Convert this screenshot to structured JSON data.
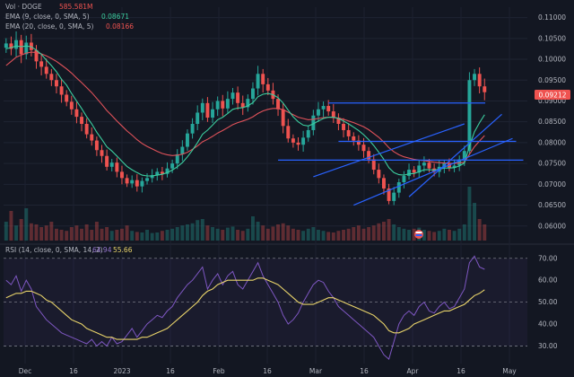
{
  "legend": {
    "vol_label": "Vol · DOGE",
    "vol_value": "585.581M",
    "ema9_label": "EMA (9, close, 0, SMA, 5)",
    "ema9_value": "0.08671",
    "ema20_label": "EMA (20, close, 0, SMA, 5)",
    "ema20_value": "0.08166",
    "rsi_label": "RSI (14, close, 0, SMA, 14, 2)",
    "rsi_value": "64.94",
    "rsi_ma_value": "55.66"
  },
  "price_badge": "0.09212",
  "colors": {
    "background": "#131722",
    "up": "#26a69a",
    "down": "#ef5350",
    "ema9": "#3ccfa0",
    "ema20": "#e0525a",
    "channel": "#2962ff",
    "rsi": "#7e57c2",
    "rsi_ma": "#e8d36a",
    "text": "#b2b5be"
  },
  "chart_data": {
    "type": "candlestick",
    "symbol": "DOGE",
    "price_axis": {
      "ylim": [
        0.0565,
        0.1125
      ],
      "ticks": [
        "0.11000",
        "0.10500",
        "0.10000",
        "0.09500",
        "0.09000",
        "0.08500",
        "0.08000",
        "0.07500",
        "0.07000",
        "0.06500",
        "0.06000"
      ]
    },
    "x_axis": {
      "ticks": [
        "Dec",
        "16",
        "2023",
        "16",
        "Feb",
        "16",
        "Mar",
        "16",
        "Apr",
        "16",
        "May"
      ]
    },
    "last_price": 0.09212,
    "close": [
      0.1038,
      0.1025,
      0.1046,
      0.1012,
      0.104,
      0.1022,
      0.0995,
      0.0982,
      0.0965,
      0.095,
      0.0935,
      0.0915,
      0.0898,
      0.088,
      0.0862,
      0.0845,
      0.082,
      0.0805,
      0.0782,
      0.0768,
      0.0742,
      0.0752,
      0.073,
      0.0715,
      0.0702,
      0.071,
      0.0695,
      0.0708,
      0.0715,
      0.0722,
      0.073,
      0.0725,
      0.0738,
      0.075,
      0.0772,
      0.079,
      0.0822,
      0.0845,
      0.0872,
      0.0895,
      0.086,
      0.088,
      0.09,
      0.0882,
      0.0905,
      0.092,
      0.0895,
      0.0885,
      0.0905,
      0.093,
      0.0965,
      0.094,
      0.0925,
      0.0905,
      0.088,
      0.084,
      0.081,
      0.08,
      0.0795,
      0.0812,
      0.083,
      0.0865,
      0.088,
      0.0888,
      0.0875,
      0.086,
      0.0845,
      0.083,
      0.0815,
      0.0805,
      0.0795,
      0.078,
      0.076,
      0.0735,
      0.0715,
      0.069,
      0.066,
      0.068,
      0.0705,
      0.072,
      0.0735,
      0.0728,
      0.0745,
      0.0752,
      0.0738,
      0.073,
      0.0742,
      0.075,
      0.074,
      0.0745,
      0.076,
      0.078,
      0.095,
      0.0965,
      0.0935,
      0.0921
    ],
    "ema_9": [
      0.1025,
      0.1028,
      0.1032,
      0.103,
      0.1032,
      0.103,
      0.1022,
      0.1012,
      0.0998,
      0.0985,
      0.097,
      0.0952,
      0.0938,
      0.0918,
      0.09,
      0.0882,
      0.0862,
      0.0845,
      0.0825,
      0.0808,
      0.079,
      0.078,
      0.0768,
      0.0755,
      0.0743,
      0.0735,
      0.0728,
      0.0722,
      0.072,
      0.072,
      0.0722,
      0.0724,
      0.0728,
      0.0734,
      0.0742,
      0.0752,
      0.0766,
      0.0782,
      0.08,
      0.082,
      0.083,
      0.0842,
      0.0855,
      0.0861,
      0.087,
      0.088,
      0.0883,
      0.0884,
      0.0888,
      0.0896,
      0.091,
      0.0916,
      0.0918,
      0.0915,
      0.0908,
      0.0895,
      0.0878,
      0.0862,
      0.085,
      0.0842,
      0.084,
      0.0845,
      0.0852,
      0.0858,
      0.0861,
      0.0861,
      0.0858,
      0.0852,
      0.0845,
      0.0837,
      0.0829,
      0.0819,
      0.0807,
      0.0793,
      0.0777,
      0.076,
      0.074,
      0.0728,
      0.0723,
      0.0722,
      0.0725,
      0.0726,
      0.073,
      0.0735,
      0.0735,
      0.0734,
      0.0736,
      0.0739,
      0.0739,
      0.074,
      0.0744,
      0.0751,
      0.0791,
      0.0826,
      0.0848,
      0.0867
    ],
    "ema_20": [
      0.0985,
      0.0995,
      0.1005,
      0.101,
      0.1015,
      0.1017,
      0.1016,
      0.1013,
      0.1008,
      0.1002,
      0.0995,
      0.0986,
      0.0977,
      0.0967,
      0.0955,
      0.0944,
      0.0932,
      0.092,
      0.0906,
      0.0892,
      0.0877,
      0.0865,
      0.0852,
      0.084,
      0.0828,
      0.0818,
      0.0807,
      0.0798,
      0.0791,
      0.0785,
      0.0779,
      0.0774,
      0.0771,
      0.0769,
      0.077,
      0.0772,
      0.0777,
      0.0784,
      0.0792,
      0.0802,
      0.0808,
      0.0815,
      0.0823,
      0.0829,
      0.0836,
      0.0843,
      0.0848,
      0.0852,
      0.0856,
      0.0862,
      0.087,
      0.0876,
      0.088,
      0.0882,
      0.0882,
      0.0879,
      0.0873,
      0.0867,
      0.0861,
      0.0858,
      0.0855,
      0.0856,
      0.0858,
      0.086,
      0.0861,
      0.086,
      0.0859,
      0.0856,
      0.0852,
      0.0848,
      0.0843,
      0.0838,
      0.0831,
      0.0822,
      0.0813,
      0.0801,
      0.0788,
      0.0778,
      0.0771,
      0.0766,
      0.0763,
      0.076,
      0.0758,
      0.0757,
      0.0755,
      0.0753,
      0.0752,
      0.0751,
      0.075,
      0.075,
      0.0751,
      0.0753,
      0.0772,
      0.079,
      0.0804,
      0.0817
    ],
    "volume": [
      0.35,
      0.55,
      0.28,
      0.4,
      0.6,
      0.32,
      0.3,
      0.25,
      0.28,
      0.35,
      0.22,
      0.2,
      0.18,
      0.25,
      0.28,
      0.22,
      0.3,
      0.2,
      0.35,
      0.22,
      0.25,
      0.18,
      0.2,
      0.22,
      0.28,
      0.18,
      0.16,
      0.15,
      0.2,
      0.14,
      0.15,
      0.18,
      0.2,
      0.22,
      0.25,
      0.28,
      0.3,
      0.32,
      0.38,
      0.4,
      0.28,
      0.25,
      0.22,
      0.2,
      0.24,
      0.26,
      0.2,
      0.18,
      0.22,
      0.45,
      0.35,
      0.28,
      0.22,
      0.26,
      0.3,
      0.32,
      0.28,
      0.22,
      0.2,
      0.18,
      0.22,
      0.25,
      0.2,
      0.18,
      0.16,
      0.15,
      0.18,
      0.2,
      0.22,
      0.25,
      0.28,
      0.22,
      0.25,
      0.28,
      0.32,
      0.35,
      0.4,
      0.3,
      0.25,
      0.22,
      0.2,
      0.22,
      0.24,
      0.2,
      0.18,
      0.16,
      0.18,
      0.22,
      0.2,
      0.18,
      0.22,
      0.3,
      1.0,
      0.7,
      0.4,
      0.3
    ],
    "rsi": {
      "ylim": [
        22,
        74
      ],
      "ticks": [
        "70.00",
        "60.00",
        "50.00",
        "40.00",
        "30.00"
      ],
      "levels": [
        70,
        50,
        30
      ],
      "values": [
        60,
        58,
        62,
        55,
        60,
        56,
        48,
        45,
        42,
        40,
        38,
        36,
        35,
        34,
        33,
        32,
        31,
        33,
        30,
        32,
        30,
        34,
        31,
        32,
        35,
        38,
        34,
        37,
        40,
        42,
        44,
        43,
        46,
        48,
        52,
        55,
        58,
        60,
        63,
        66,
        56,
        60,
        63,
        58,
        62,
        64,
        58,
        56,
        60,
        64,
        68,
        62,
        58,
        54,
        50,
        44,
        40,
        42,
        45,
        50,
        54,
        58,
        60,
        59,
        55,
        52,
        48,
        46,
        44,
        42,
        40,
        38,
        36,
        34,
        30,
        26,
        24,
        32,
        40,
        44,
        46,
        44,
        48,
        50,
        46,
        45,
        48,
        50,
        47,
        48,
        52,
        56,
        68,
        71,
        66,
        65
      ],
      "ma": [
        52,
        53,
        54,
        54,
        55,
        55,
        54,
        53,
        51,
        50,
        48,
        46,
        44,
        42,
        41,
        40,
        38,
        37,
        36,
        35,
        34,
        34,
        33,
        33,
        33,
        33,
        33,
        34,
        34,
        35,
        36,
        37,
        38,
        40,
        42,
        44,
        46,
        48,
        50,
        53,
        55,
        56,
        58,
        59,
        60,
        60,
        60,
        60,
        60,
        60,
        61,
        61,
        60,
        59,
        58,
        56,
        54,
        52,
        50,
        49,
        49,
        49,
        50,
        51,
        52,
        52,
        51,
        50,
        49,
        48,
        47,
        46,
        45,
        44,
        42,
        40,
        37,
        36,
        36,
        37,
        38,
        40,
        41,
        42,
        43,
        44,
        45,
        46,
        46,
        47,
        48,
        49,
        51,
        53,
        54,
        55.66
      ]
    },
    "horizontal_levels": [
      0.0895,
      0.0803,
      0.0758
    ]
  }
}
